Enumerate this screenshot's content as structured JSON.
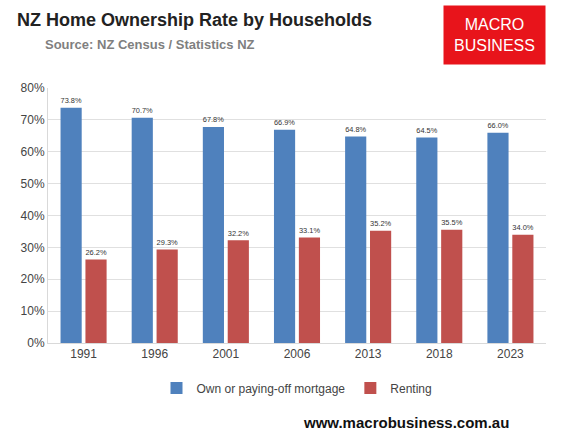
{
  "chart_data": {
    "type": "bar",
    "title": "NZ Home Ownership Rate by Households",
    "subtitle": "Source: NZ Census / Statistics NZ",
    "logo": [
      "MACRO",
      "BUSINESS"
    ],
    "footer": "www.macrobusiness.com.au",
    "categories": [
      "1991",
      "1996",
      "2001",
      "2006",
      "2013",
      "2018",
      "2023"
    ],
    "series": [
      {
        "name": "Own or paying-off mortgage",
        "color": "#4f81bd",
        "values": [
          73.8,
          70.7,
          67.8,
          66.9,
          64.8,
          64.5,
          66.0
        ],
        "value_labels": [
          "73.8%",
          "70.7%",
          "67.8%",
          "66.9%",
          "64.8%",
          "64.5%",
          "66.0%"
        ]
      },
      {
        "name": "Renting",
        "color": "#c0504d",
        "values": [
          26.2,
          29.3,
          32.2,
          33.1,
          35.2,
          35.5,
          34.0
        ],
        "value_labels": [
          "26.2%",
          "29.3%",
          "32.2%",
          "33.1%",
          "35.2%",
          "35.5%",
          "34.0%"
        ]
      }
    ],
    "ylim": [
      0,
      80
    ],
    "yticks": [
      {
        "value": 0,
        "label": "0%"
      },
      {
        "value": 10,
        "label": "10%"
      },
      {
        "value": 20,
        "label": "20%"
      },
      {
        "value": 30,
        "label": "30%"
      },
      {
        "value": 40,
        "label": "40%"
      },
      {
        "value": 50,
        "label": "50%"
      },
      {
        "value": 60,
        "label": "60%"
      },
      {
        "value": 70,
        "label": "70%"
      },
      {
        "value": 80,
        "label": "80%"
      }
    ],
    "grid": true,
    "legend": "bottom",
    "data_labels": true
  }
}
